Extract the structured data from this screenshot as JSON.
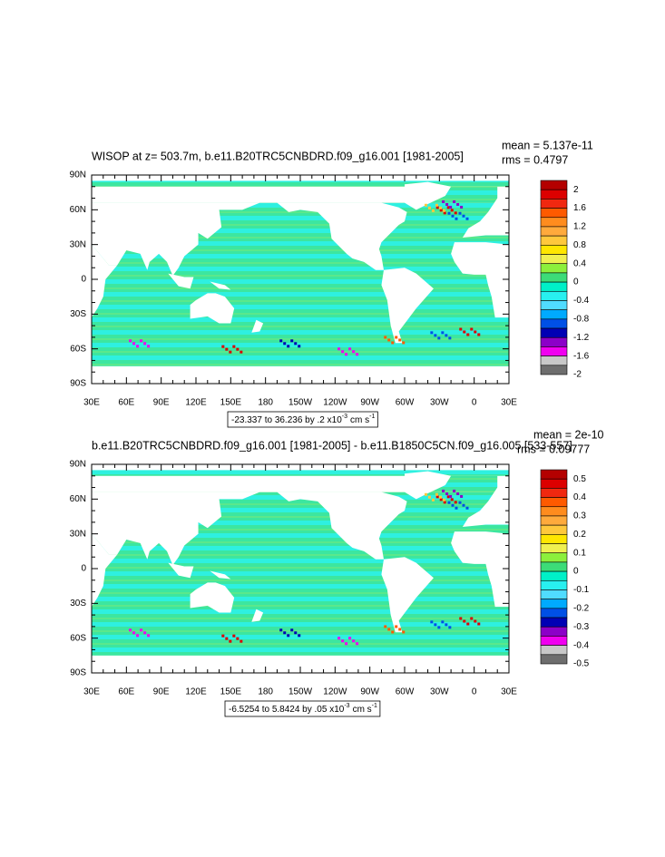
{
  "panels": [
    {
      "title": "WISOP at z= 503.7m, b.e11.B20TRC5CNBDRD.f09_g16.001 [1981-2005]",
      "mean": "mean = 5.137e-11",
      "rms": "rms = 0.4797",
      "colorbar_labels": [
        "2",
        "1.6",
        "1.2",
        "0.8",
        "0.4",
        "0",
        "-0.4",
        "-0.8",
        "-1.2",
        "-1.6",
        "-2"
      ],
      "range_note": {
        "text": "-23.337 to 36.236 by .2 x10",
        "exp": "-3",
        "unit": "cm s",
        "unit_exp": "-1"
      }
    },
    {
      "title": "b.e11.B20TRC5CNBDRD.f09_g16.001 [1981-2005] - b.e11.B1850C5CN.f09_g16.005 [533-557]",
      "mean": "mean = 2e-10",
      "rms": "rms = 0.09777",
      "colorbar_labels": [
        "0.5",
        "0.4",
        "0.3",
        "0.2",
        "0.1",
        "0",
        "-0.1",
        "-0.2",
        "-0.3",
        "-0.4",
        "-0.5"
      ],
      "range_note": {
        "text": "-6.5254 to 5.8424 by .05 x10",
        "exp": "-3",
        "unit": "cm s",
        "unit_exp": "-1"
      }
    }
  ],
  "lat_labels": [
    "90N",
    "60N",
    "30N",
    "0",
    "30S",
    "60S",
    "90S"
  ],
  "lon_labels": [
    "30E",
    "60E",
    "90E",
    "120E",
    "150E",
    "180",
    "150W",
    "120W",
    "90W",
    "60W",
    "30W",
    "0",
    "30E"
  ],
  "colorbar_colors": [
    "#b40000",
    "#dc0000",
    "#f02810",
    "#ff5a00",
    "#ff8c1e",
    "#ffaa3c",
    "#ffc83c",
    "#ffe600",
    "#f0f050",
    "#8cf03c",
    "#3cdc78",
    "#00f0c8",
    "#28f0f0",
    "#50dcff",
    "#00aaff",
    "#0050e6",
    "#0000b4",
    "#8c00c8",
    "#f000f0",
    "#c8c8c8"
  ]
}
